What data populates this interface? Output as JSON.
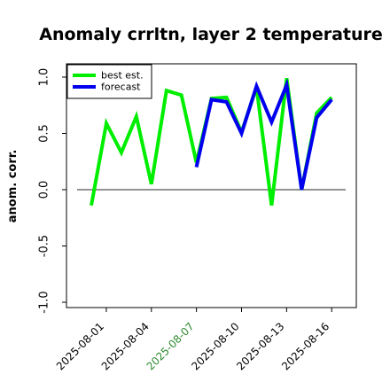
{
  "chart_data": {
    "type": "line",
    "title": "Anomaly crrltn, layer 2 temperature",
    "xlabel": "",
    "ylabel": "anom. corr.",
    "ylim": [
      -1.0,
      1.0
    ],
    "yticks": [
      "-1.0",
      "-0.5",
      "0.0",
      "0.5",
      "1.0"
    ],
    "x": [
      "2025-07-31",
      "2025-08-01",
      "2025-08-02",
      "2025-08-03",
      "2025-08-04",
      "2025-08-05",
      "2025-08-06",
      "2025-08-07",
      "2025-08-08",
      "2025-08-09",
      "2025-08-10",
      "2025-08-11",
      "2025-08-12",
      "2025-08-13",
      "2025-08-14",
      "2025-08-15",
      "2025-08-16"
    ],
    "xticks": [
      "2025-08-01",
      "2025-08-04",
      "2025-08-07",
      "2025-08-10",
      "2025-08-13",
      "2025-08-16"
    ],
    "highlighted_xtick": "2025-08-07",
    "highlight_color": "#2e8b2e",
    "reference_line": 0.0,
    "grid": false,
    "legend_position": "top-left",
    "series": [
      {
        "name": "best est.",
        "color": "#00ee00",
        "values": [
          -0.14,
          0.59,
          0.33,
          0.65,
          0.05,
          0.88,
          0.84,
          0.24,
          0.81,
          0.82,
          0.51,
          0.91,
          -0.14,
          0.99,
          0.0,
          0.68,
          0.82
        ]
      },
      {
        "name": "forecast",
        "color": "#0000ee",
        "values": [
          null,
          null,
          null,
          null,
          null,
          null,
          null,
          0.2,
          0.8,
          0.78,
          0.5,
          0.92,
          0.6,
          0.93,
          0.0,
          0.64,
          0.8
        ]
      }
    ]
  }
}
